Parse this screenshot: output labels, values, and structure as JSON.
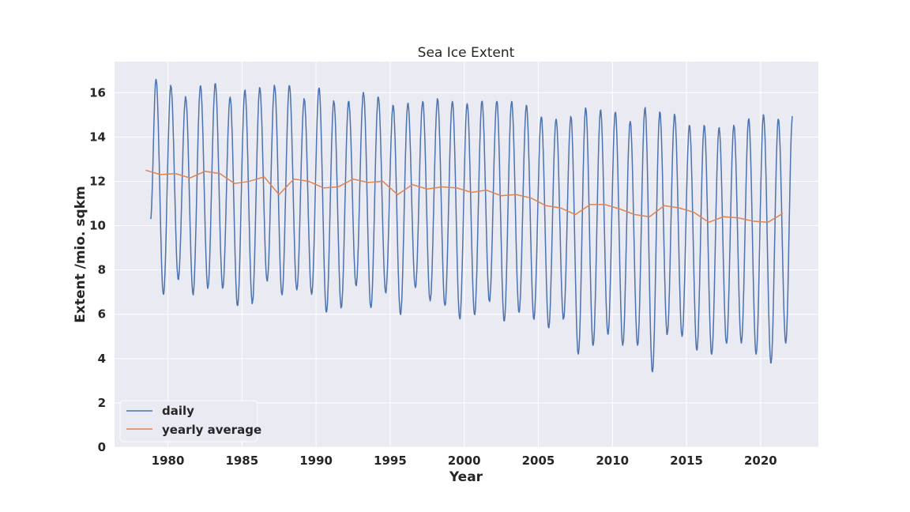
{
  "chart_data": {
    "type": "line",
    "title": "Sea Ice Extent",
    "xlabel": "Year",
    "ylabel": "Extent /mio. sqkm",
    "xlim": [
      1976.4,
      2023.9
    ],
    "ylim": [
      0,
      17.4
    ],
    "xticks": [
      1980,
      1985,
      1990,
      1995,
      2000,
      2005,
      2010,
      2015,
      2020
    ],
    "yticks": [
      0,
      2,
      4,
      6,
      8,
      10,
      12,
      14,
      16
    ],
    "grid": true,
    "legend_position": "lower-left",
    "colors": {
      "background": "#eaeaf2",
      "grid": "#ffffff",
      "daily": "#4c72b0",
      "yearly": "#dd8452"
    },
    "series": [
      {
        "name": "daily",
        "note_cycles": "annual seasonal extrema (maximum near March, minimum near September)",
        "start": {
          "x": 1978.83,
          "y": 10.3
        },
        "end": {
          "x": 2022.15,
          "y": 14.9
        },
        "extrema": [
          [
            1979.2,
            16.6
          ],
          [
            1979.7,
            6.9
          ],
          [
            1980.2,
            16.3
          ],
          [
            1980.7,
            7.6
          ],
          [
            1981.2,
            15.8
          ],
          [
            1981.7,
            6.9
          ],
          [
            1982.2,
            16.3
          ],
          [
            1982.7,
            7.2
          ],
          [
            1983.2,
            16.4
          ],
          [
            1983.7,
            7.2
          ],
          [
            1984.2,
            15.8
          ],
          [
            1984.7,
            6.4
          ],
          [
            1985.2,
            16.1
          ],
          [
            1985.7,
            6.5
          ],
          [
            1986.2,
            16.2
          ],
          [
            1986.7,
            7.5
          ],
          [
            1987.2,
            16.3
          ],
          [
            1987.7,
            6.9
          ],
          [
            1988.2,
            16.3
          ],
          [
            1988.7,
            7.1
          ],
          [
            1989.2,
            15.7
          ],
          [
            1989.7,
            6.9
          ],
          [
            1990.2,
            16.2
          ],
          [
            1990.7,
            6.1
          ],
          [
            1991.2,
            15.6
          ],
          [
            1991.7,
            6.3
          ],
          [
            1992.2,
            15.6
          ],
          [
            1992.7,
            7.3
          ],
          [
            1993.2,
            16.0
          ],
          [
            1993.7,
            6.3
          ],
          [
            1994.2,
            15.8
          ],
          [
            1994.7,
            7.0
          ],
          [
            1995.2,
            15.4
          ],
          [
            1995.7,
            6.0
          ],
          [
            1996.2,
            15.5
          ],
          [
            1996.7,
            7.2
          ],
          [
            1997.2,
            15.6
          ],
          [
            1997.7,
            6.6
          ],
          [
            1998.2,
            15.7
          ],
          [
            1998.7,
            6.4
          ],
          [
            1999.2,
            15.6
          ],
          [
            1999.7,
            5.8
          ],
          [
            2000.2,
            15.5
          ],
          [
            2000.7,
            6.0
          ],
          [
            2001.2,
            15.6
          ],
          [
            2001.7,
            6.6
          ],
          [
            2002.2,
            15.6
          ],
          [
            2002.7,
            5.7
          ],
          [
            2003.2,
            15.6
          ],
          [
            2003.7,
            6.1
          ],
          [
            2004.2,
            15.4
          ],
          [
            2004.7,
            5.8
          ],
          [
            2005.2,
            14.9
          ],
          [
            2005.7,
            5.4
          ],
          [
            2006.2,
            14.8
          ],
          [
            2006.7,
            5.8
          ],
          [
            2007.2,
            14.9
          ],
          [
            2007.7,
            4.2
          ],
          [
            2008.2,
            15.3
          ],
          [
            2008.7,
            4.6
          ],
          [
            2009.2,
            15.2
          ],
          [
            2009.7,
            5.1
          ],
          [
            2010.2,
            15.1
          ],
          [
            2010.7,
            4.6
          ],
          [
            2011.2,
            14.7
          ],
          [
            2011.7,
            4.6
          ],
          [
            2012.2,
            15.3
          ],
          [
            2012.7,
            3.4
          ],
          [
            2013.2,
            15.1
          ],
          [
            2013.7,
            5.1
          ],
          [
            2014.2,
            15.0
          ],
          [
            2014.7,
            5.0
          ],
          [
            2015.2,
            14.5
          ],
          [
            2015.7,
            4.4
          ],
          [
            2016.2,
            14.5
          ],
          [
            2016.7,
            4.2
          ],
          [
            2017.2,
            14.4
          ],
          [
            2017.7,
            4.7
          ],
          [
            2018.2,
            14.5
          ],
          [
            2018.7,
            4.7
          ],
          [
            2019.2,
            14.8
          ],
          [
            2019.7,
            4.2
          ],
          [
            2020.2,
            15.0
          ],
          [
            2020.7,
            3.8
          ],
          [
            2021.2,
            14.8
          ],
          [
            2021.7,
            4.7
          ]
        ]
      },
      {
        "name": "yearly average",
        "points": [
          [
            1978.5,
            12.5
          ],
          [
            1979.5,
            12.3
          ],
          [
            1980.5,
            12.35
          ],
          [
            1981.5,
            12.15
          ],
          [
            1982.5,
            12.45
          ],
          [
            1983.5,
            12.35
          ],
          [
            1984.5,
            11.9
          ],
          [
            1985.5,
            12.0
          ],
          [
            1986.5,
            12.2
          ],
          [
            1987.5,
            11.4
          ],
          [
            1988.5,
            12.1
          ],
          [
            1989.5,
            12.0
          ],
          [
            1990.5,
            11.7
          ],
          [
            1991.5,
            11.75
          ],
          [
            1992.5,
            12.1
          ],
          [
            1993.5,
            11.95
          ],
          [
            1994.5,
            12.0
          ],
          [
            1995.5,
            11.4
          ],
          [
            1996.5,
            11.85
          ],
          [
            1997.5,
            11.65
          ],
          [
            1998.5,
            11.75
          ],
          [
            1999.5,
            11.7
          ],
          [
            2000.5,
            11.5
          ],
          [
            2001.5,
            11.6
          ],
          [
            2002.5,
            11.35
          ],
          [
            2003.5,
            11.4
          ],
          [
            2004.5,
            11.25
          ],
          [
            2005.5,
            10.9
          ],
          [
            2006.5,
            10.8
          ],
          [
            2007.5,
            10.5
          ],
          [
            2008.5,
            10.95
          ],
          [
            2009.5,
            10.95
          ],
          [
            2010.5,
            10.75
          ],
          [
            2011.5,
            10.5
          ],
          [
            2012.5,
            10.4
          ],
          [
            2013.5,
            10.9
          ],
          [
            2014.5,
            10.8
          ],
          [
            2015.5,
            10.6
          ],
          [
            2016.5,
            10.15
          ],
          [
            2017.5,
            10.4
          ],
          [
            2018.5,
            10.35
          ],
          [
            2019.5,
            10.2
          ],
          [
            2020.5,
            10.15
          ],
          [
            2021.5,
            10.55
          ]
        ]
      }
    ]
  }
}
